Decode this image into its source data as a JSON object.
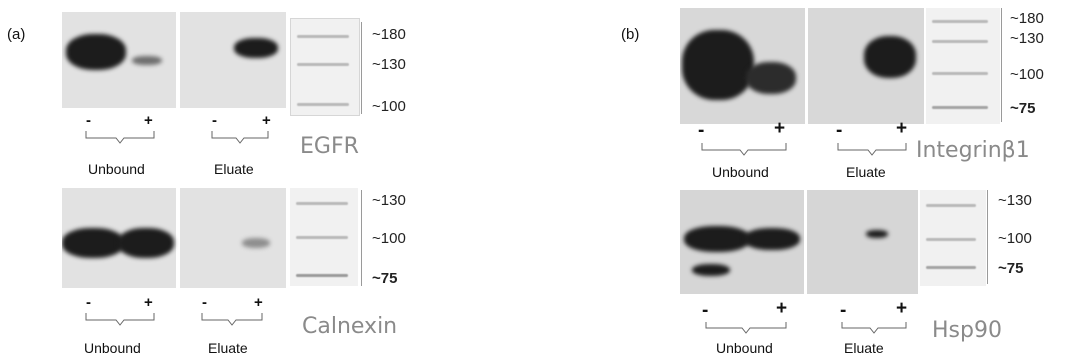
{
  "panels": {
    "a": {
      "label": "(a)",
      "egfr": {
        "protein": "EGFR",
        "markers": [
          "~180",
          "~130",
          "~100"
        ],
        "signs": [
          "-",
          "+",
          "-",
          "+"
        ],
        "groups": [
          "Unbound",
          "Eluate"
        ]
      },
      "calnexin": {
        "protein": "Calnexin",
        "markers": [
          "~130",
          "~100",
          "~75"
        ],
        "signs": [
          "-",
          "+",
          "-",
          "+"
        ],
        "groups": [
          "Unbound",
          "Eluate"
        ]
      }
    },
    "b": {
      "label": "(b)",
      "integrin": {
        "protein": "Integrinβ1",
        "markers": [
          "~180",
          "~130",
          "~100",
          "~75"
        ],
        "signs": [
          "-",
          "+",
          "-",
          "+"
        ],
        "groups": [
          "Unbound",
          "Eluate"
        ]
      },
      "hsp90": {
        "protein": "Hsp90",
        "markers": [
          "~130",
          "~100",
          "~75"
        ],
        "signs": [
          "-",
          "+",
          "-",
          "+"
        ],
        "groups": [
          "Unbound",
          "Eluate"
        ]
      }
    }
  }
}
